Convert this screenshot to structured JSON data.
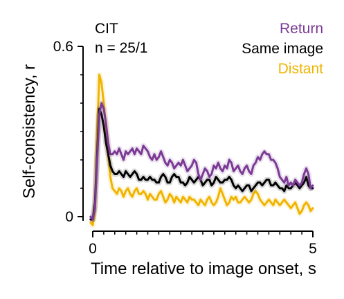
{
  "chart_data": {
    "type": "line",
    "annotation": {
      "line1": "CIT",
      "line2": "n = 25/1"
    },
    "xlabel": "Time relative to image onset, s",
    "ylabel": "Self-consistency, r",
    "xlim": [
      0,
      5
    ],
    "ylim": [
      0,
      0.6
    ],
    "x_ticks": [
      0,
      5
    ],
    "x_tick_labels": [
      "0",
      "5"
    ],
    "x_minor_step": 0.25,
    "y_ticks": [
      0,
      0.6
    ],
    "y_tick_labels": [
      "0",
      "0.6"
    ],
    "y_minor_step": 0.1,
    "grid": false,
    "legend_position": "top-right",
    "x_start": -0.05,
    "x_step": 0.05,
    "series": [
      {
        "name": "Return",
        "color": "#7b3a94",
        "values": [
          0.0,
          -0.01,
          0.03,
          0.2,
          0.36,
          0.4,
          0.38,
          0.33,
          0.26,
          0.22,
          0.22,
          0.23,
          0.22,
          0.24,
          0.22,
          0.2,
          0.23,
          0.22,
          0.23,
          0.24,
          0.22,
          0.24,
          0.23,
          0.22,
          0.25,
          0.24,
          0.23,
          0.21,
          0.2,
          0.22,
          0.2,
          0.21,
          0.23,
          0.21,
          0.19,
          0.18,
          0.2,
          0.19,
          0.17,
          0.18,
          0.19,
          0.18,
          0.2,
          0.18,
          0.16,
          0.17,
          0.18,
          0.2,
          0.19,
          0.15,
          0.13,
          0.15,
          0.17,
          0.16,
          0.14,
          0.15,
          0.18,
          0.17,
          0.19,
          0.17,
          0.16,
          0.18,
          0.17,
          0.2,
          0.19,
          0.16,
          0.17,
          0.18,
          0.16,
          0.15,
          0.17,
          0.18,
          0.16,
          0.15,
          0.18,
          0.19,
          0.21,
          0.2,
          0.22,
          0.23,
          0.22,
          0.22,
          0.2,
          0.2,
          0.19,
          0.17,
          0.14,
          0.13,
          0.12,
          0.14,
          0.11,
          0.12,
          0.11,
          0.13,
          0.12,
          0.11,
          0.12,
          0.15,
          0.17,
          0.15,
          0.1,
          0.11
        ]
      },
      {
        "name": "Same image",
        "color": "#000000",
        "values": [
          -0.01,
          -0.01,
          0.05,
          0.22,
          0.38,
          0.36,
          0.32,
          0.26,
          0.22,
          0.18,
          0.16,
          0.15,
          0.15,
          0.16,
          0.15,
          0.14,
          0.16,
          0.15,
          0.14,
          0.15,
          0.16,
          0.15,
          0.13,
          0.13,
          0.14,
          0.13,
          0.13,
          0.14,
          0.13,
          0.13,
          0.12,
          0.12,
          0.14,
          0.15,
          0.14,
          0.12,
          0.12,
          0.14,
          0.15,
          0.14,
          0.14,
          0.12,
          0.12,
          0.11,
          0.12,
          0.14,
          0.13,
          0.12,
          0.13,
          0.14,
          0.13,
          0.11,
          0.12,
          0.13,
          0.13,
          0.11,
          0.12,
          0.14,
          0.13,
          0.12,
          0.12,
          0.13,
          0.13,
          0.14,
          0.13,
          0.11,
          0.1,
          0.11,
          0.1,
          0.09,
          0.1,
          0.11,
          0.11,
          0.09,
          0.1,
          0.11,
          0.12,
          0.12,
          0.11,
          0.12,
          0.13,
          0.13,
          0.11,
          0.11,
          0.12,
          0.11,
          0.1,
          0.1,
          0.09,
          0.11,
          0.1,
          0.1,
          0.11,
          0.12,
          0.11,
          0.1,
          0.11,
          0.12,
          0.14,
          0.11,
          0.1,
          0.1
        ]
      },
      {
        "name": "Distant",
        "color": "#f0b400",
        "values": [
          -0.02,
          -0.03,
          0.02,
          0.3,
          0.5,
          0.47,
          0.4,
          0.32,
          0.22,
          0.14,
          0.1,
          0.09,
          0.08,
          0.1,
          0.09,
          0.07,
          0.09,
          0.1,
          0.08,
          0.07,
          0.09,
          0.1,
          0.08,
          0.08,
          0.09,
          0.08,
          0.06,
          0.08,
          0.07,
          0.06,
          0.06,
          0.08,
          0.09,
          0.07,
          0.05,
          0.06,
          0.08,
          0.07,
          0.05,
          0.07,
          0.06,
          0.05,
          0.07,
          0.06,
          0.05,
          0.07,
          0.06,
          0.06,
          0.05,
          0.04,
          0.06,
          0.05,
          0.04,
          0.06,
          0.07,
          0.05,
          0.04,
          0.05,
          0.07,
          0.1,
          0.08,
          0.06,
          0.04,
          0.05,
          0.07,
          0.06,
          0.07,
          0.05,
          0.05,
          0.06,
          0.07,
          0.06,
          0.05,
          0.06,
          0.08,
          0.09,
          0.08,
          0.06,
          0.05,
          0.04,
          0.05,
          0.06,
          0.05,
          0.04,
          0.06,
          0.05,
          0.04,
          0.05,
          0.06,
          0.05,
          0.04,
          0.03,
          0.04,
          0.05,
          0.03,
          0.01,
          0.02,
          0.04,
          0.05,
          0.04,
          0.02,
          0.03
        ]
      }
    ]
  }
}
